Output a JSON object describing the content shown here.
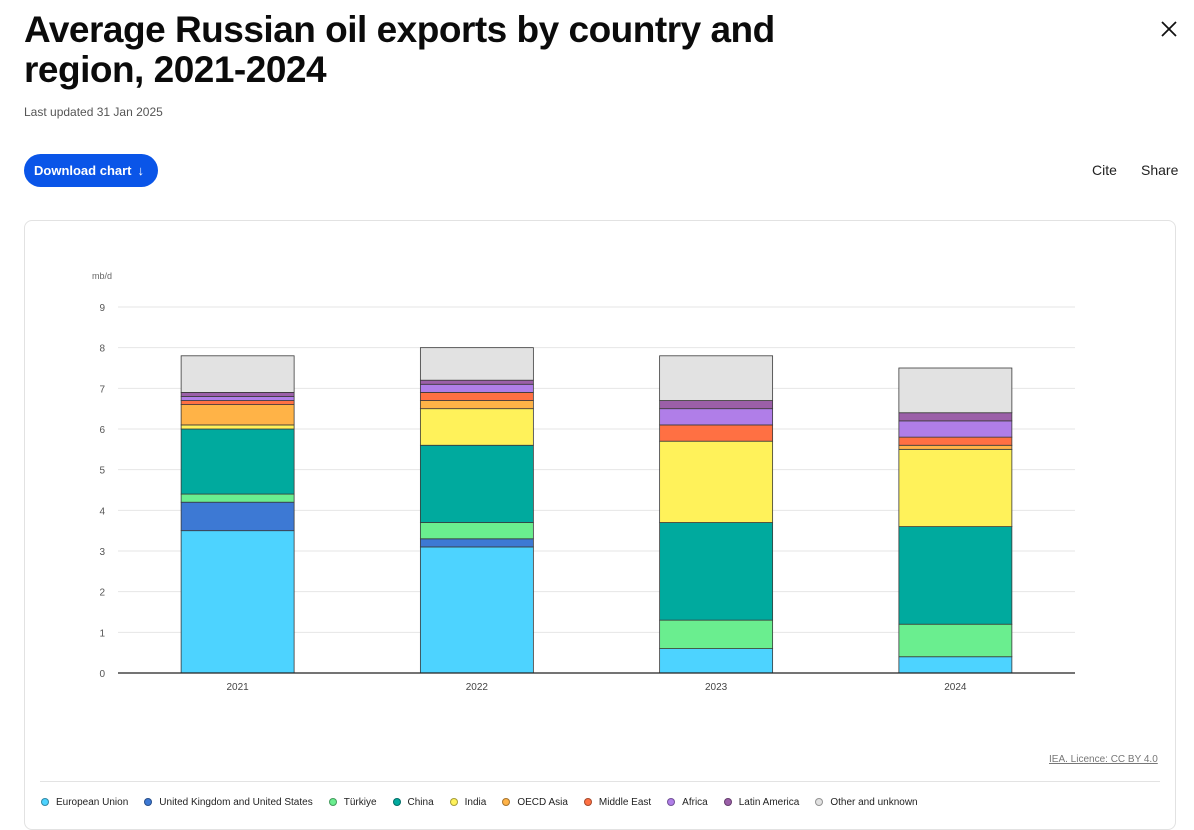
{
  "page": {
    "title": "Average Russian oil exports by country and region, 2021-2024",
    "updated": "Last updated 31 Jan 2025",
    "download_label": "Download chart",
    "download_arrow": "↓",
    "cite_label": "Cite",
    "share_label": "Share",
    "licence": "IEA. Licence: CC BY 4.0"
  },
  "chart_data": {
    "type": "bar",
    "stacked": true,
    "ylabel": "mb/d",
    "ylim": [
      0,
      9
    ],
    "yticks": [
      0,
      1,
      2,
      3,
      4,
      5,
      6,
      7,
      8,
      9
    ],
    "grid": true,
    "legend_position": "bottom",
    "categories": [
      "2021",
      "2022",
      "2023",
      "2024"
    ],
    "series": [
      {
        "name": "European Union",
        "color": "#4dd3ff",
        "values": [
          3.5,
          3.1,
          0.6,
          0.4
        ]
      },
      {
        "name": "United Kingdom and United States",
        "color": "#3d79d4",
        "values": [
          0.7,
          0.2,
          0.0,
          0.0
        ]
      },
      {
        "name": "Türkiye",
        "color": "#6aee8f",
        "values": [
          0.2,
          0.4,
          0.7,
          0.8
        ]
      },
      {
        "name": "China",
        "color": "#00aa9e",
        "values": [
          1.6,
          1.9,
          2.4,
          2.4
        ]
      },
      {
        "name": "India",
        "color": "#fff25a",
        "values": [
          0.1,
          0.9,
          2.0,
          1.9
        ]
      },
      {
        "name": "OECD Asia",
        "color": "#ffb347",
        "values": [
          0.5,
          0.2,
          0.0,
          0.1
        ]
      },
      {
        "name": "Middle East",
        "color": "#ff7043",
        "values": [
          0.1,
          0.2,
          0.4,
          0.2
        ]
      },
      {
        "name": "Africa",
        "color": "#b07ee8",
        "values": [
          0.1,
          0.2,
          0.4,
          0.4
        ]
      },
      {
        "name": "Latin America",
        "color": "#9b5fa8",
        "values": [
          0.1,
          0.1,
          0.2,
          0.2
        ]
      },
      {
        "name": "Other and unknown",
        "color": "#e2e2e2",
        "values": [
          0.9,
          0.8,
          1.1,
          1.1
        ]
      }
    ]
  }
}
